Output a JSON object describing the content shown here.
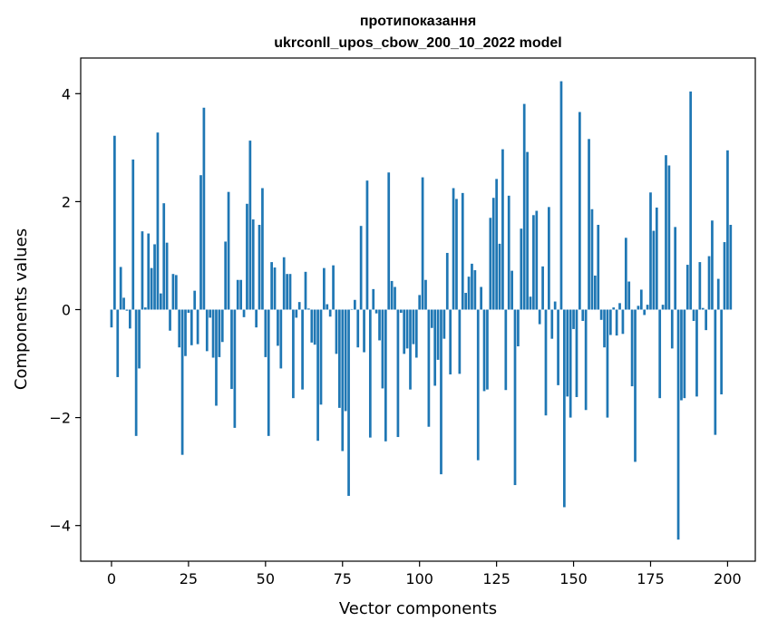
{
  "chart_data": {
    "type": "bar",
    "title_line1": "протипоказання",
    "title_line2": "ukrconll_upos_cbow_200_10_2022 model",
    "xlabel": "Vector components",
    "ylabel": "Components values",
    "xlim": [
      -10,
      209
    ],
    "ylim": [
      -4.66,
      4.66
    ],
    "x_ticks": [
      0,
      25,
      50,
      75,
      100,
      125,
      150,
      175,
      200
    ],
    "y_ticks": [
      -4,
      -2,
      0,
      2,
      4
    ],
    "y_tick_labels": [
      "−4",
      "−2",
      "0",
      "2",
      "4"
    ],
    "bar_color": "#1f77b4",
    "grid": false,
    "values": [
      -0.33,
      3.22,
      -1.25,
      0.79,
      0.22,
      -0.02,
      -0.35,
      2.78,
      -2.34,
      -1.09,
      1.45,
      0.04,
      1.41,
      0.77,
      1.21,
      3.28,
      0.3,
      1.97,
      1.24,
      -0.39,
      0.66,
      0.64,
      -0.7,
      -2.69,
      -0.86,
      -0.06,
      -0.66,
      0.35,
      -0.64,
      2.49,
      3.74,
      -0.77,
      -0.15,
      -0.89,
      -1.78,
      -0.88,
      -0.6,
      1.26,
      2.18,
      -1.47,
      -2.19,
      0.55,
      0.55,
      -0.14,
      1.96,
      3.13,
      1.67,
      -0.33,
      1.57,
      2.25,
      -0.88,
      -2.34,
      0.88,
      0.78,
      -0.67,
      -1.09,
      0.97,
      0.66,
      0.66,
      -1.64,
      -0.15,
      0.14,
      -1.48,
      0.7,
      0.02,
      -0.61,
      -0.65,
      -2.43,
      -1.76,
      0.77,
      0.1,
      -0.13,
      0.82,
      -0.82,
      -1.82,
      -2.62,
      -1.88,
      -3.45,
      0.01,
      0.18,
      -0.7,
      1.55,
      -0.79,
      2.39,
      -2.37,
      0.38,
      -0.07,
      -0.57,
      -1.46,
      -2.44,
      2.54,
      0.53,
      0.42,
      -2.36,
      -0.06,
      -0.82,
      -0.72,
      -1.48,
      -0.64,
      -0.89,
      0.27,
      2.45,
      0.55,
      -2.17,
      -0.34,
      -1.41,
      -0.93,
      -3.05,
      -0.54,
      1.05,
      -1.2,
      2.25,
      2.05,
      -1.19,
      2.16,
      0.31,
      0.61,
      0.85,
      0.73,
      -2.79,
      0.42,
      -1.51,
      -1.48,
      1.7,
      2.07,
      2.42,
      1.22,
      2.97,
      -1.49,
      2.11,
      0.72,
      -3.25,
      -0.68,
      1.5,
      3.81,
      2.92,
      0.24,
      1.75,
      1.83,
      -0.27,
      0.8,
      -1.96,
      1.9,
      -0.54,
      0.15,
      -1.4,
      4.23,
      -3.66,
      -1.61,
      -2.0,
      -0.36,
      -1.62,
      3.66,
      -0.21,
      -1.86,
      3.16,
      1.86,
      0.63,
      1.57,
      -0.19,
      -0.7,
      -2.0,
      -0.47,
      0.04,
      -0.48,
      0.12,
      -0.45,
      1.33,
      0.52,
      -1.42,
      -2.82,
      0.07,
      0.37,
      -0.1,
      0.09,
      2.17,
      1.46,
      1.89,
      -1.64,
      0.09,
      2.86,
      2.67,
      -0.72,
      1.53,
      -4.26,
      -1.68,
      -1.64,
      0.83,
      4.04,
      -0.21,
      -1.61,
      0.88,
      0.03,
      -0.38,
      0.99,
      1.65,
      -2.32,
      0.57,
      -1.57,
      1.25,
      2.95,
      1.57
    ]
  }
}
